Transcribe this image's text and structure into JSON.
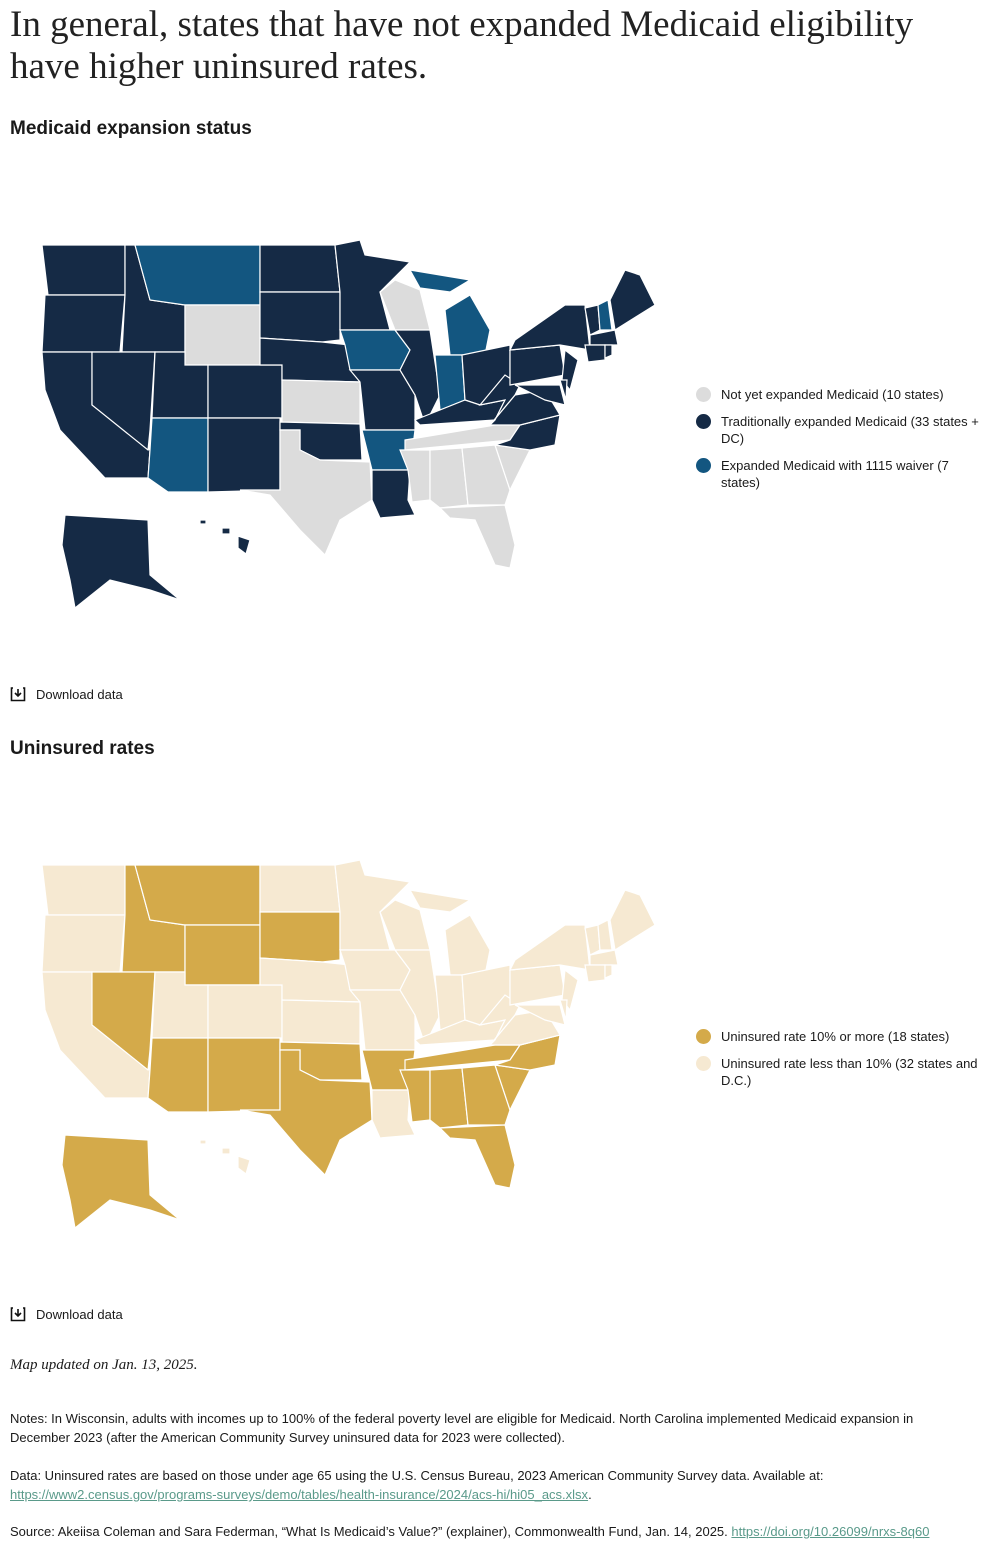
{
  "header": {
    "title": "In general, states that have not expanded Medicaid eligibility have higher uninsured rates."
  },
  "maps": [
    {
      "title": "Medicaid expansion status",
      "download": "Download data",
      "legend": [
        {
          "label": "Not yet expanded Medicaid (10 states)",
          "color": "#dcdcdc"
        },
        {
          "label": "Traditionally expanded Medicaid (33 states + DC)",
          "color": "#152a45"
        },
        {
          "label": "Expanded Medicaid with 1115 waiver (7 states)",
          "color": "#135680"
        }
      ]
    },
    {
      "title": "Uninsured rates",
      "download": "Download data",
      "legend": [
        {
          "label": "Uninsured rate 10% or more (18 states)",
          "color": "#d4aa4a"
        },
        {
          "label": "Uninsured rate less than 10% (32 states and D.C.)",
          "color": "#f6e9d2"
        }
      ]
    }
  ],
  "footer": {
    "updated": "Map updated on Jan. 13, 2025.",
    "notes": "Notes: In Wisconsin, adults with incomes up to 100% of the federal poverty level are eligible for Medicaid. North Carolina implemented Medicaid expansion in December 2023 (after the American Community Survey uninsured data for 2023 were collected).",
    "data_text": "Data: Uninsured rates are based on those under age 65 using the U.S. Census Bureau, 2023 American Community Survey data. Available at:",
    "data_link": "https://www2.census.gov/programs-surveys/demo/tables/health-insurance/2024/acs-hi/hi05_acs.xlsx",
    "source_text": "Source: Akeiisa Coleman and Sara Federman, “What Is Medicaid’s Value?” (explainer), Commonwealth Fund, Jan. 14, 2025.",
    "source_link": "https://doi.org/10.26099/nrxs-8q60"
  }
}
